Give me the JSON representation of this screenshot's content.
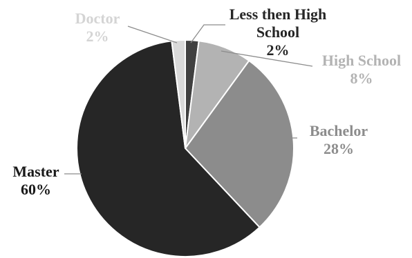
{
  "chart_data": {
    "type": "pie",
    "title": "",
    "slices": [
      {
        "label_lines": [
          "Less then High",
          "School"
        ],
        "value": 2,
        "display_value": "2%",
        "color": "#404040",
        "label_color": "#262626"
      },
      {
        "label_lines": [
          "High School"
        ],
        "value": 8,
        "display_value": "8%",
        "color": "#b3b3b3",
        "label_color": "#b3b3b3"
      },
      {
        "label_lines": [
          "Bachelor"
        ],
        "value": 28,
        "display_value": "28%",
        "color": "#8c8c8c",
        "label_color": "#8c8c8c"
      },
      {
        "label_lines": [
          "Master"
        ],
        "value": 60,
        "display_value": "60%",
        "color": "#262626",
        "label_color": "#1a1a1a"
      },
      {
        "label_lines": [
          "Doctor"
        ],
        "value": 2,
        "display_value": "2%",
        "color": "#d9d9d9",
        "label_color": "#d4d4d4"
      }
    ],
    "start_angle_deg": 0,
    "direction": "clockwise",
    "legend": "none"
  }
}
